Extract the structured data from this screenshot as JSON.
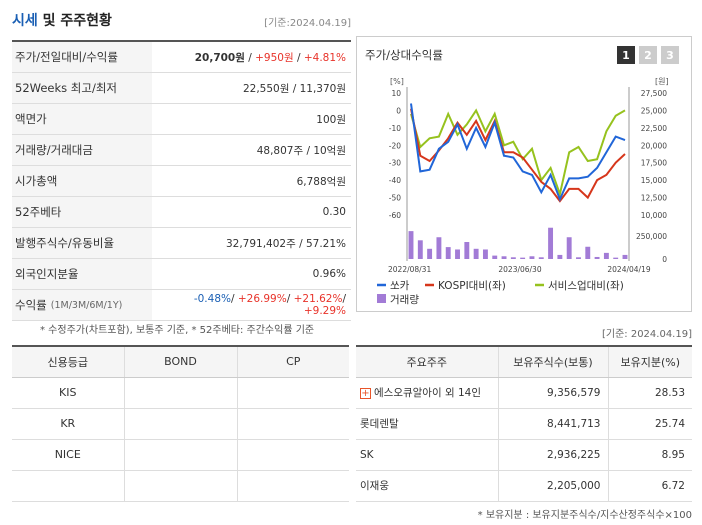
{
  "header": {
    "title_a": "시세",
    "title_b": "및 주주현황",
    "date": "[기준:2024.04.19]"
  },
  "summary_rows": [
    {
      "key": "주가/전일대비/수익률",
      "sub": "",
      "values": [
        {
          "t": "20,700원",
          "c": "bold"
        },
        {
          "t": " / ",
          "c": ""
        },
        {
          "t": "+950원",
          "c": "red"
        },
        {
          "t": " / ",
          "c": ""
        },
        {
          "t": "+4.81%",
          "c": "red"
        }
      ]
    },
    {
      "key": "52Weeks 최고/최저",
      "sub": "",
      "values": [
        {
          "t": "22,550원 / 11,370원",
          "c": ""
        }
      ]
    },
    {
      "key": "액면가",
      "sub": "",
      "values": [
        {
          "t": "100원",
          "c": ""
        }
      ]
    },
    {
      "key": "거래량/거래대금",
      "sub": "",
      "values": [
        {
          "t": "48,807주 / 10억원",
          "c": ""
        }
      ]
    },
    {
      "key": "시가총액",
      "sub": "",
      "values": [
        {
          "t": "6,788억원",
          "c": ""
        }
      ]
    },
    {
      "key": "52주베타",
      "sub": "",
      "values": [
        {
          "t": "0.30",
          "c": ""
        }
      ]
    },
    {
      "key": "발행주식수/유동비율",
      "sub": "",
      "values": [
        {
          "t": "32,791,402주 / 57.21%",
          "c": ""
        }
      ]
    },
    {
      "key": "외국인지분율",
      "sub": "",
      "values": [
        {
          "t": "0.96%",
          "c": ""
        }
      ]
    },
    {
      "key": "수익률",
      "sub": "(1M/3M/6M/1Y)",
      "values": [
        {
          "t": "-0.48%",
          "c": "blu"
        },
        {
          "t": "/ ",
          "c": ""
        },
        {
          "t": "+26.99%",
          "c": "red"
        },
        {
          "t": "/ ",
          "c": ""
        },
        {
          "t": "+21.62%",
          "c": "red"
        },
        {
          "t": "/ ",
          "c": ""
        },
        {
          "t": "+9.29%",
          "c": "red"
        }
      ]
    }
  ],
  "note_left": "* 수정주가(차트포함), 보통주 기준, * 52주베타: 주간수익률 기준",
  "chart_panel": {
    "title": "주가/상대수익률",
    "buttons": [
      "1",
      "2",
      "3"
    ],
    "active_button": "1"
  },
  "chart_data": {
    "type": "line",
    "left_unit": "[%]",
    "right_unit": "[원]",
    "yticks_left": [
      10,
      0,
      -10,
      -20,
      -30,
      -40,
      -50,
      -60
    ],
    "ylim_left": [
      -60,
      10
    ],
    "yticks_right": [
      "27,500",
      "25,000",
      "22,500",
      "20,000",
      "17,500",
      "15,000",
      "12,500",
      "10,000"
    ],
    "volume_ticks": [
      "250,000",
      "0"
    ],
    "x_labels": [
      "2022/08/31",
      "2023/06/30",
      "2024/04/19"
    ],
    "series": [
      {
        "name": "쏘카",
        "color": "#2166d8",
        "values": [
          4,
          -35,
          -34,
          -22,
          -18,
          -8,
          -22,
          -10,
          -21,
          -7,
          -26,
          -27,
          -35,
          -37,
          -47,
          -37,
          -51,
          -39,
          -39,
          -38,
          -33,
          -24,
          -15,
          -17
        ]
      },
      {
        "name": "KOSPI대비(좌)",
        "color": "#d6361b",
        "values": [
          1,
          -26,
          -29,
          -23,
          -16,
          -7,
          -14,
          -6,
          -17,
          -6,
          -24,
          -24,
          -27,
          -34,
          -41,
          -45,
          -52,
          -45,
          -45,
          -50,
          -40,
          -37,
          -30,
          -25
        ]
      },
      {
        "name": "서비스업대비(좌)",
        "color": "#96c21e",
        "values": [
          -2,
          -21,
          -16,
          -15,
          -2,
          -14,
          -8,
          0,
          -12,
          -2,
          -20,
          -18,
          -28,
          -22,
          -40,
          -33,
          -48,
          -24,
          -21,
          -29,
          -28,
          -12,
          -3,
          0
        ]
      }
    ],
    "volume": {
      "name": "거래량",
      "color": "#a27bd6",
      "values": [
        0.82,
        0.55,
        0.3,
        0.64,
        0.35,
        0.28,
        0.5,
        0.3,
        0.28,
        0.1,
        0.08,
        0.05,
        0.04,
        0.08,
        0.05,
        0.92,
        0.12,
        0.64,
        0.05,
        0.36,
        0.06,
        0.18,
        0.04,
        0.12
      ]
    }
  },
  "date_right": "[기준: 2024.04.19]",
  "credit": {
    "headers": [
      "신용등급",
      "BOND",
      "CP"
    ],
    "rows": [
      [
        "KIS",
        "",
        ""
      ],
      [
        "KR",
        "",
        ""
      ],
      [
        "NICE",
        "",
        ""
      ],
      [
        "",
        "",
        ""
      ]
    ]
  },
  "holders": {
    "headers": [
      "주요주주",
      "보유주식수(보통)",
      "보유지분(%)"
    ],
    "rows": [
      [
        "에스오큐알아이 외 14인",
        "9,356,579",
        "28.53"
      ],
      [
        "롯데렌탈",
        "8,441,713",
        "25.74"
      ],
      [
        "SK",
        "2,936,225",
        "8.95"
      ],
      [
        "이재웅",
        "2,205,000",
        "6.72"
      ]
    ],
    "plus_icon": "+"
  },
  "note_right": "* 보유지분 : 보유지분주식수/지수산정주식수×100"
}
